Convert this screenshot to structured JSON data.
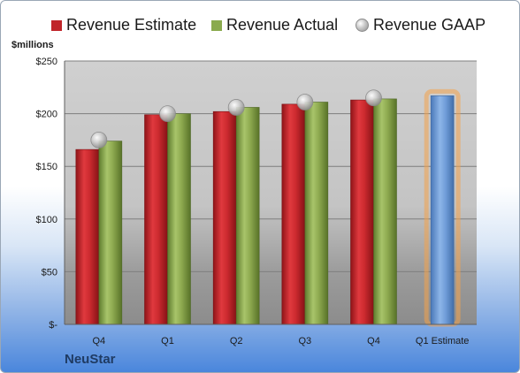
{
  "legend": {
    "estimate": "Revenue Estimate",
    "actual": "Revenue Actual",
    "gaap": "Revenue GAAP"
  },
  "unit_label": "$millions",
  "company": "NeuStar",
  "colors": {
    "estimate": "#c0252a",
    "actual": "#8aaa4e",
    "forecast": "#6d9bd6",
    "forecast_glow": "#f4a24a",
    "gaap": "#b8b8b8"
  },
  "chart_data": {
    "type": "bar",
    "categories": [
      "Q4",
      "Q1",
      "Q2",
      "Q3",
      "Q4",
      "Q1 Estimate"
    ],
    "y_ticks": [
      "$-",
      "$50",
      "$100",
      "$150",
      "$200",
      "$250"
    ],
    "ylim": [
      0,
      250
    ],
    "ylabel": "$millions",
    "legend_position": "top",
    "grid": true,
    "series": [
      {
        "name": "Revenue Estimate",
        "values": [
          166,
          199,
          202,
          209,
          213,
          null
        ]
      },
      {
        "name": "Revenue Actual",
        "values": [
          174,
          200,
          206,
          211,
          214,
          null
        ]
      },
      {
        "name": "Revenue GAAP",
        "values": [
          175,
          200,
          206,
          211,
          215,
          null
        ]
      }
    ],
    "forecast": {
      "name": "Q1 Estimate",
      "value": 217
    }
  }
}
